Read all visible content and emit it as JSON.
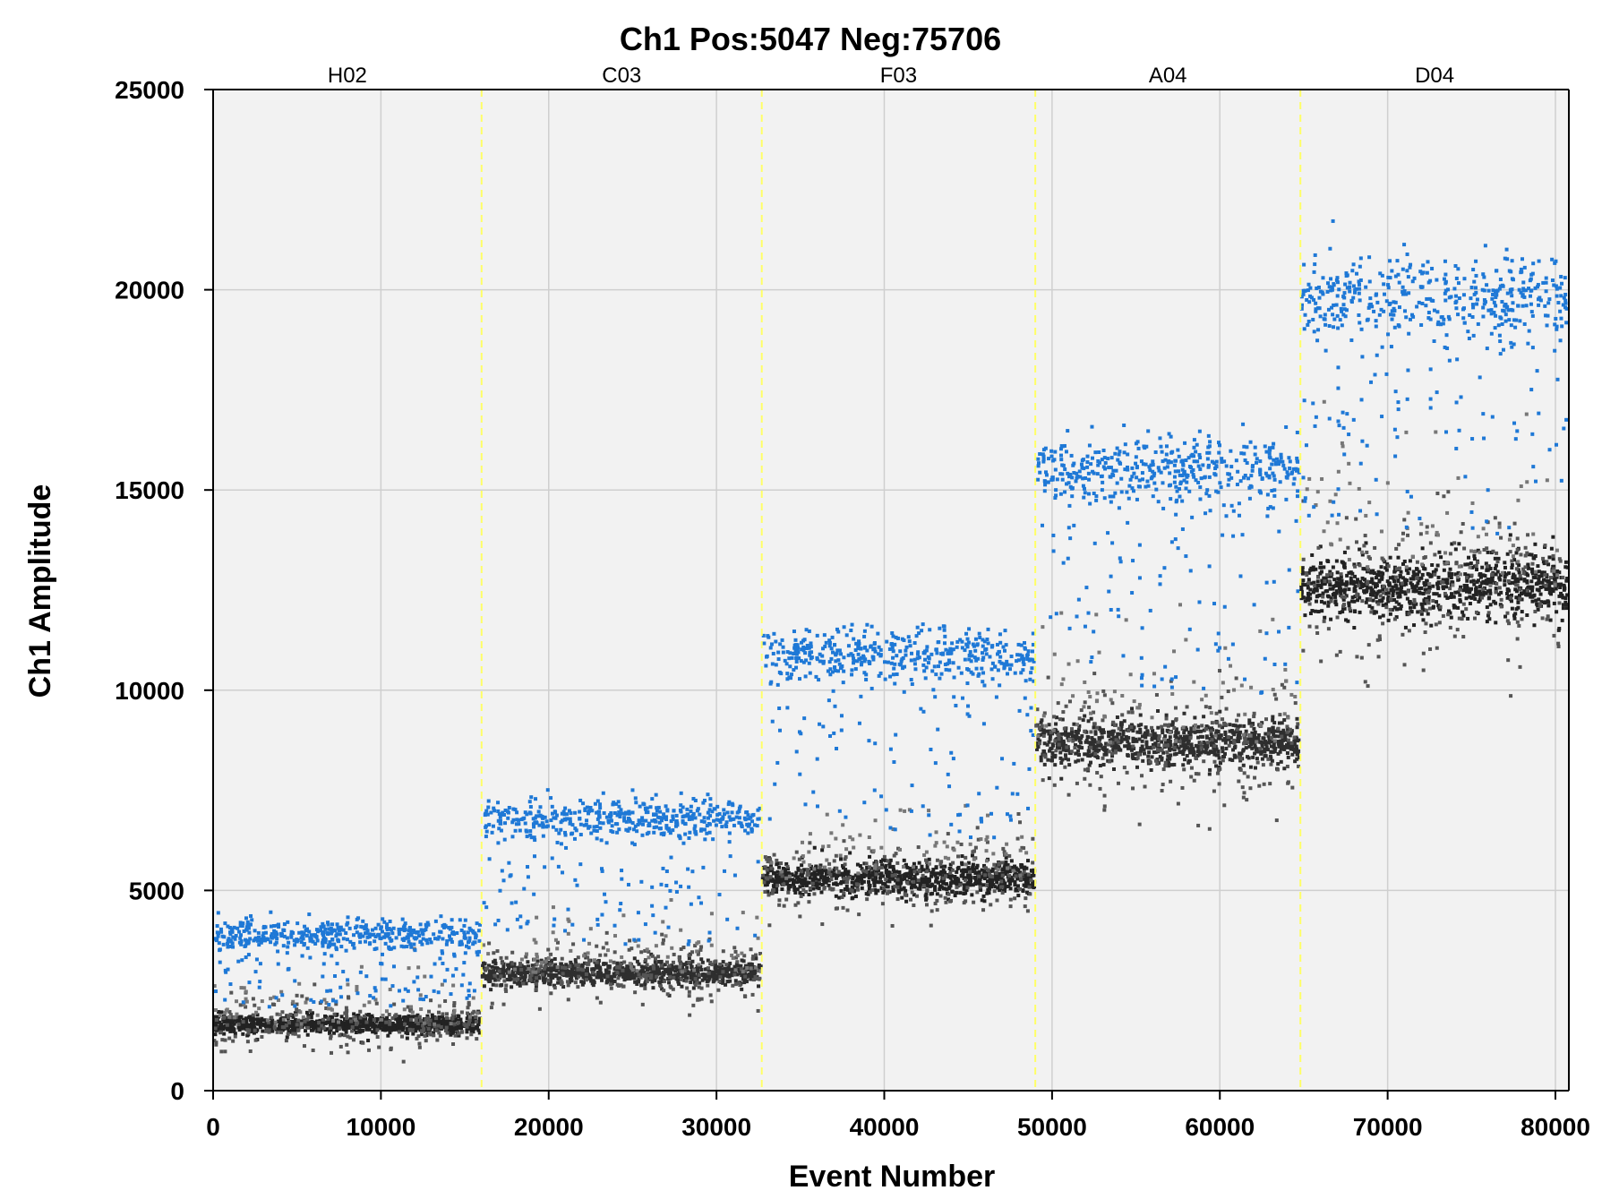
{
  "chart_data": {
    "type": "scatter",
    "title": "Ch1 Pos:5047 Neg:75706",
    "xlabel": "Event Number",
    "ylabel": "Ch1 Amplitude",
    "xlim": [
      0,
      80800
    ],
    "ylim": [
      0,
      25000
    ],
    "xticks": [
      "0",
      "10000",
      "20000",
      "30000",
      "40000",
      "50000",
      "60000",
      "70000",
      "80000"
    ],
    "yticks": [
      "0",
      "5000",
      "10000",
      "15000",
      "20000",
      "25000"
    ],
    "grid": true,
    "plot_background": "#f2f2f2",
    "grid_color": "#cfcfcf",
    "separator_color": "#ffff66",
    "positive_color": "#1e78d6",
    "negative_color": "#333333",
    "wells": [
      {
        "name": "H02",
        "start": 0,
        "end": 16000,
        "positive_amplitude": 3900,
        "negative_amplitude": 1650
      },
      {
        "name": "C03",
        "start": 16000,
        "end": 32700,
        "positive_amplitude": 6800,
        "negative_amplitude": 2950
      },
      {
        "name": "F03",
        "start": 32700,
        "end": 49000,
        "positive_amplitude": 10900,
        "negative_amplitude": 5300
      },
      {
        "name": "A04",
        "start": 49000,
        "end": 64800,
        "positive_amplitude": 15500,
        "negative_amplitude": 8700
      },
      {
        "name": "D04",
        "start": 64800,
        "end": 80800,
        "positive_amplitude": 19800,
        "negative_amplitude": 12600
      }
    ],
    "series": [
      {
        "name": "Pos",
        "count": 5047
      },
      {
        "name": "Neg",
        "count": 75706
      }
    ]
  }
}
